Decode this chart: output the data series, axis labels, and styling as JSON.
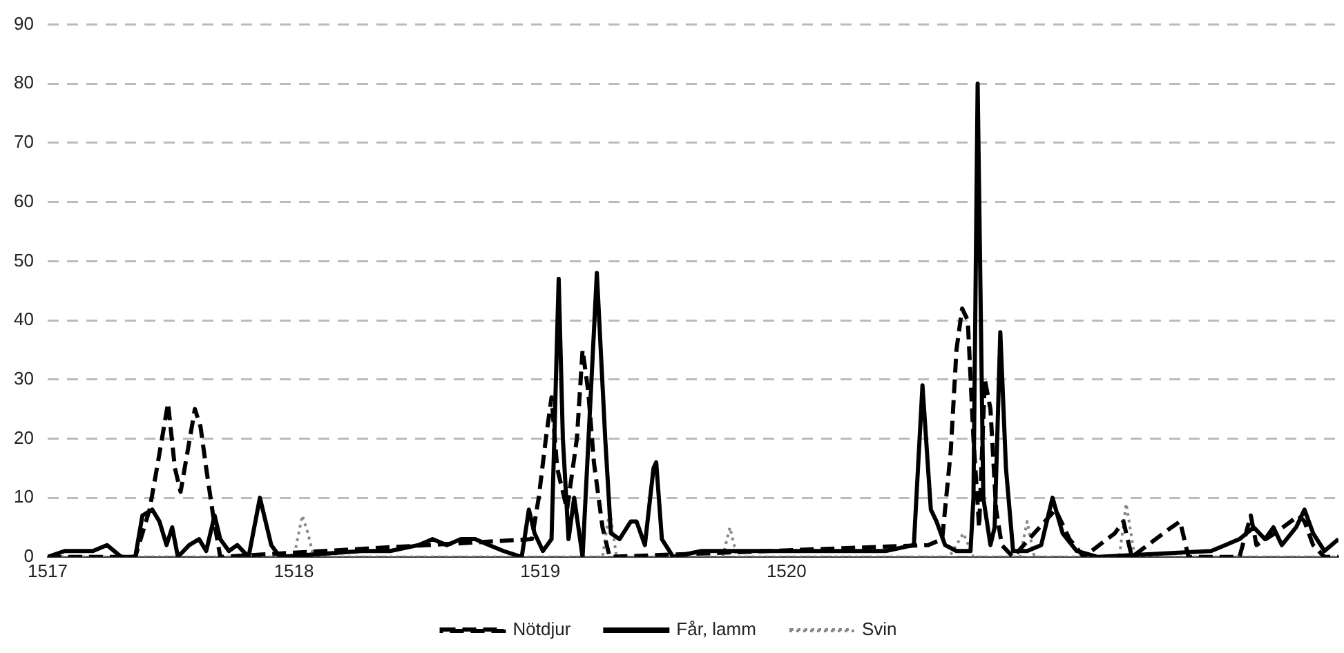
{
  "chart_data": {
    "type": "line",
    "marker": "none",
    "grid": "y",
    "legend": "bottom",
    "xlim": [
      1517,
      1522.241
    ],
    "xticks": [
      1517,
      1518,
      1519,
      1520
    ],
    "ylim": [
      0,
      90
    ],
    "yticks": [
      0,
      10,
      20,
      30,
      40,
      50,
      60,
      70,
      80,
      90
    ],
    "series": [
      {
        "name": "Nötdjur",
        "color": "#000000",
        "line_style": "dashed",
        "x": [
          1517,
          1517.356,
          1517.414,
          1517.448,
          1517.489,
          1517.517,
          1517.54,
          1517.569,
          1517.598,
          1517.621,
          1517.644,
          1517.672,
          1517.701,
          1518.966,
          1518.994,
          1519.023,
          1519.046,
          1519.069,
          1519.109,
          1519.149,
          1519.172,
          1519.195,
          1519.218,
          1519.253,
          1519.282,
          1520.575,
          1520.632,
          1520.667,
          1520.69,
          1520.713,
          1520.736,
          1520.759,
          1520.782,
          1520.805,
          1520.828,
          1520.851,
          1520.874,
          1520.92,
          1521.092,
          1521.149,
          1521.207,
          1521.333,
          1521.368,
          1521.402,
          1521.563,
          1521.598,
          1521.632,
          1521.839,
          1521.885,
          1521.908,
          1521.983,
          1522.08,
          1522.103,
          1522.138,
          1522.184,
          1522.241
        ],
        "values": [
          0,
          0,
          8,
          16,
          26,
          15,
          11,
          18,
          25,
          22,
          15,
          7,
          0,
          3,
          10,
          20,
          27,
          15,
          8,
          20,
          35,
          28,
          16,
          5,
          0,
          2,
          3,
          18,
          35,
          42,
          40,
          20,
          5,
          30,
          25,
          8,
          2,
          0,
          8,
          3,
          0,
          4,
          6,
          0,
          5,
          6,
          0,
          0,
          7,
          2,
          4,
          7,
          6,
          2,
          0,
          0
        ]
      },
      {
        "name": "Får, lamm",
        "color": "#000000",
        "line_style": "solid",
        "x": [
          1517,
          1517.069,
          1517.184,
          1517.241,
          1517.299,
          1517.356,
          1517.385,
          1517.425,
          1517.454,
          1517.483,
          1517.506,
          1517.529,
          1517.575,
          1517.615,
          1517.644,
          1517.678,
          1517.701,
          1517.736,
          1517.77,
          1517.816,
          1517.862,
          1517.885,
          1517.908,
          1517.943,
          1518.276,
          1518.391,
          1518.506,
          1518.563,
          1518.621,
          1518.678,
          1518.736,
          1518.793,
          1518.851,
          1518.925,
          1518.954,
          1518.977,
          1519.011,
          1519.046,
          1519.075,
          1519.092,
          1519.115,
          1519.138,
          1519.172,
          1519.23,
          1519.264,
          1519.287,
          1519.322,
          1519.368,
          1519.391,
          1519.425,
          1519.46,
          1519.471,
          1519.494,
          1519.54,
          1519.655,
          1519.77,
          1519.885,
          1520,
          1520.287,
          1520.402,
          1520.517,
          1520.552,
          1520.586,
          1520.609,
          1520.644,
          1520.69,
          1520.747,
          1520.759,
          1520.776,
          1520.799,
          1520.828,
          1520.845,
          1520.868,
          1520.891,
          1520.92,
          1520.977,
          1521.034,
          1521.08,
          1521.121,
          1521.178,
          1521.264,
          1521.724,
          1521.839,
          1521.897,
          1521.943,
          1521.977,
          1522.011,
          1522.069,
          1522.103,
          1522.138,
          1522.184,
          1522.241
        ],
        "values": [
          0,
          1,
          1,
          2,
          0,
          0,
          7,
          8,
          6,
          2,
          5,
          0,
          2,
          3,
          1,
          7,
          3,
          1,
          2,
          0,
          10,
          6,
          2,
          0,
          1,
          1,
          2,
          3,
          2,
          3,
          3,
          2,
          1,
          0,
          8,
          4,
          1,
          3,
          47,
          20,
          3,
          10,
          0,
          48,
          20,
          4,
          3,
          6,
          6,
          2,
          15,
          16,
          3,
          0,
          1,
          1,
          1,
          1,
          1,
          1,
          2,
          29,
          8,
          6,
          2,
          1,
          1,
          10,
          80,
          10,
          2,
          5,
          38,
          15,
          1,
          1,
          2,
          10,
          4,
          1,
          0,
          1,
          3,
          5,
          3,
          5,
          2,
          5,
          8,
          4,
          1,
          3
        ]
      },
      {
        "name": "Svin",
        "color": "#888888",
        "line_style": "dotted",
        "x": [
          1517,
          1518,
          1518.034,
          1518.057,
          1518.08,
          1519.253,
          1519.282,
          1519.31,
          1519.741,
          1519.77,
          1519.799,
          1520.661,
          1520.718,
          1520.759,
          1520.948,
          1520.977,
          1521.006,
          1521.351,
          1521.379,
          1521.414,
          1522.241
        ],
        "values": [
          0,
          0,
          7,
          4,
          0,
          0,
          8,
          0,
          0,
          5,
          0,
          0,
          4,
          0,
          0,
          6,
          0,
          0,
          9,
          0,
          0
        ]
      }
    ]
  }
}
